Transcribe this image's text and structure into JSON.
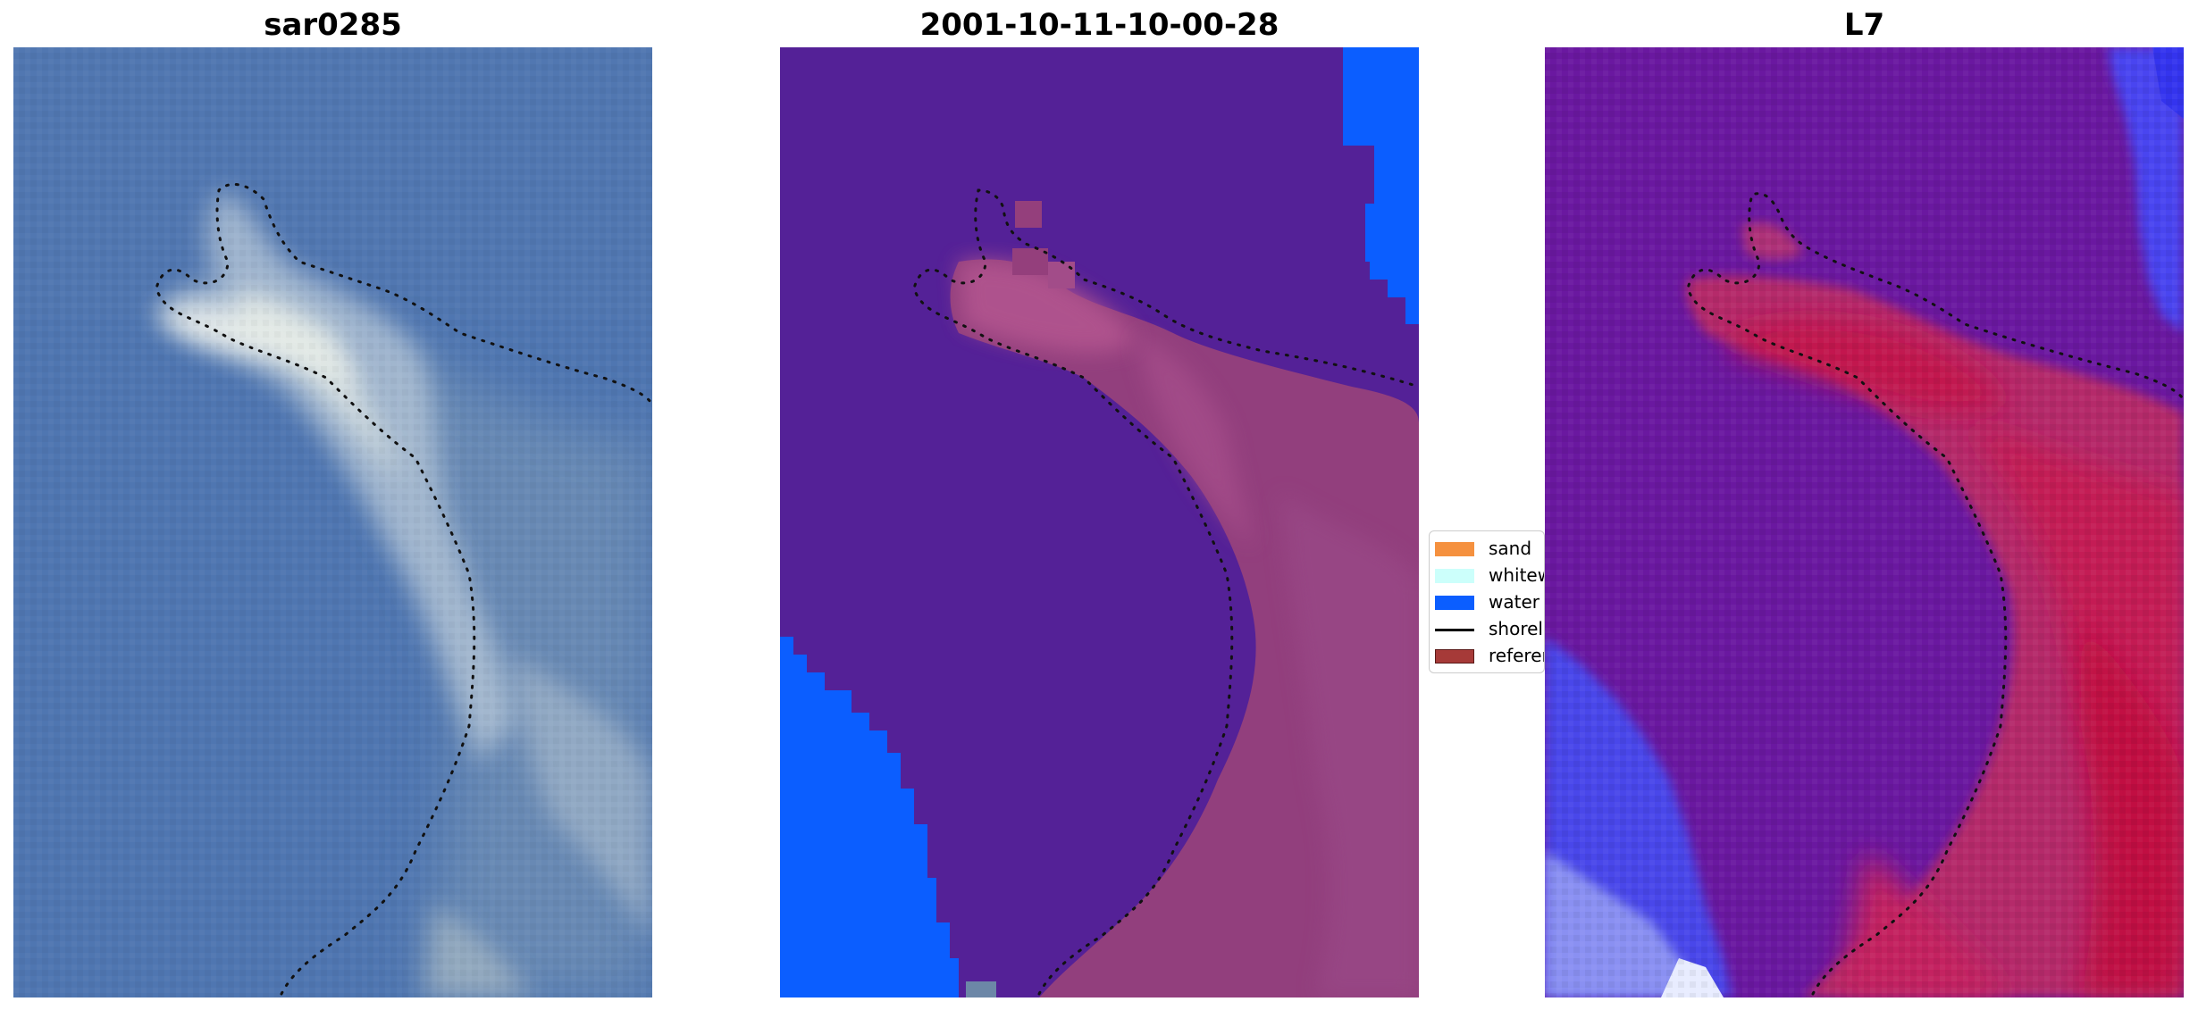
{
  "panels": [
    {
      "title": "sar0285",
      "image": "satellite-rgb-image"
    },
    {
      "title": "2001-10-11-10-00-28",
      "image": "classified-image"
    },
    {
      "title": "L7",
      "image": "mndwi-image"
    }
  ],
  "legend": {
    "items": [
      {
        "label": "sand",
        "color": "#f5913f",
        "kind": "patch"
      },
      {
        "label": "whitewater",
        "color": "#ccfffb",
        "kind": "patch"
      },
      {
        "label": "water",
        "color": "#0b5eff",
        "kind": "patch"
      },
      {
        "label": "shoreline",
        "color": "#000000",
        "kind": "line"
      },
      {
        "label": "reference shoreline",
        "color": "#a63a38",
        "kind": "patch"
      }
    ]
  },
  "colors": {
    "sea_blue": "#4d74b0",
    "classified_purple": "#542197",
    "classified_water": "#0b5eff",
    "sand_overlay": "#9b4a86",
    "index_purple": "#6a18a0",
    "index_red": "#c51e55"
  }
}
